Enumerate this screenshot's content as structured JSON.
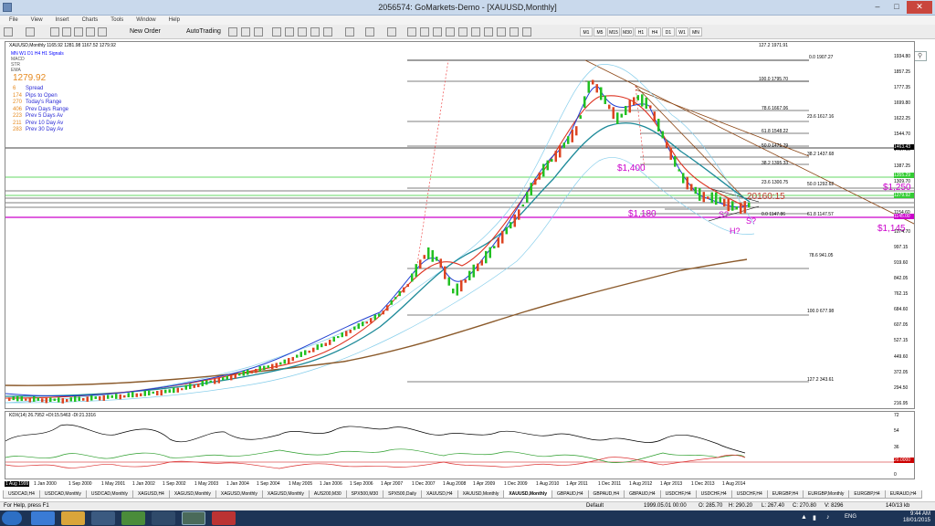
{
  "window": {
    "title": "2056574: GoMarkets-Demo - [XAUUSD,Monthly]",
    "min": "–",
    "max": "□",
    "close": "✕"
  },
  "menu": [
    "File",
    "View",
    "Insert",
    "Charts",
    "Tools",
    "Window",
    "Help"
  ],
  "toolbar": {
    "new_order": "New Order",
    "autotrading": "AutoTrading",
    "timeframes": [
      "M1",
      "M5",
      "M15",
      "M30",
      "H1",
      "H4",
      "D1",
      "W1",
      "MN"
    ]
  },
  "chart": {
    "header": "XAUUSD,Monthly 1165.92 1281.98 1167.52 1279.92",
    "signals_label": "MN W1 D1 H4 H1 Signals",
    "signals_rows": [
      "MACD",
      "STR",
      "EMA"
    ],
    "price": "1279.92",
    "stats": [
      {
        "n": "6",
        "l": "Spread"
      },
      {
        "n": "174",
        "l": "Pips to Open"
      },
      {
        "n": "270",
        "l": "Today's Range"
      },
      {
        "n": "406",
        "l": "Prev Days Range"
      },
      {
        "n": "223",
        "l": "Prev 5 Days Av"
      },
      {
        "n": "211",
        "l": "Prev 10 Day Av"
      },
      {
        "n": "283",
        "l": "Prev 30 Day Av"
      }
    ],
    "annotations": [
      "$1,400",
      "$1,180",
      "$1,250",
      "$1,145",
      "S?",
      "S?",
      "H?"
    ],
    "time_label": "20160:15",
    "fib_levels": [
      {
        "label": "127.2 1971.91"
      },
      {
        "label": "0.0 1907.27"
      },
      {
        "label": "100.0 1795.70"
      },
      {
        "label": "78.6 1667.06"
      },
      {
        "label": "23.6 1617.16"
      },
      {
        "label": "61.8 1548.22"
      },
      {
        "label": "50.0 1471.79"
      },
      {
        "label": "38.2 1437.68"
      },
      {
        "label": "38.2 1395.33"
      },
      {
        "label": "23.6 1300.75"
      },
      {
        "label": "50.0 1292.62"
      },
      {
        "label": "0.0 1147.86"
      },
      {
        "label": "61.8 1147.57"
      },
      {
        "label": "78.6 941.05"
      },
      {
        "label": "100.0 677.98"
      },
      {
        "label": "127.2 343.61"
      }
    ],
    "price_axis": [
      "1934.80",
      "1857.25",
      "1777.35",
      "1699.80",
      "1622.25",
      "1544.70",
      "1467.15",
      "1387.25",
      "1309.70",
      "1232.15",
      "1154.60",
      "1074.70",
      "997.15",
      "919.60",
      "842.05",
      "762.15",
      "684.60",
      "607.05",
      "527.15",
      "449.60",
      "372.05",
      "294.50",
      "216.95"
    ],
    "price_boxes": [
      "1463.43",
      "1355.29",
      "1279.92",
      "1145.00"
    ],
    "date_axis": [
      "1 Aug 1999",
      "1 Jan 2000",
      "1 Sep 2000",
      "1 May 2001",
      "1 Jan 2002",
      "1 Sep 2002",
      "1 May 2003",
      "1 Jan 2004",
      "1 Sep 2004",
      "1 May 2005",
      "1 Jan 2006",
      "1 Sep 2006",
      "1 Apr 2007",
      "1 Dec 2007",
      "1 Aug 2008",
      "1 Apr 2009",
      "1 Dec 2009",
      "1 Aug 2010",
      "1 Apr 2011",
      "1 Dec 2011",
      "1 Aug 2012",
      "1 Apr 2013",
      "1 Dec 2013",
      "1 Aug 2014"
    ]
  },
  "indicator": {
    "label": "KDX(14) 26.7952 +DI:15.5463 -DI:21.3316",
    "axis": [
      "72",
      "54",
      "36",
      "18",
      "0"
    ],
    "level": "20.0000"
  },
  "tabs": [
    "USDCAD,H4",
    "USDCAD,Monthly",
    "USDCAD,Monthly",
    "XAGUSD,H4",
    "XAGUSD,Monthly",
    "XAGUSD,Monthly",
    "XAGUSD,Monthly",
    "AUS200,M30",
    "SPX500,M30",
    "SPX500,Daily",
    "XAUUSD,H4",
    "XAUUSD,Monthly",
    "XAUUSD,Monthly",
    "GBPAUD,H4",
    "GBPAUD,H4",
    "GBPAUD,H4",
    "USDCHF,H4",
    "USDCHF,H4",
    "USDCHF,H4",
    "EURGBP,H4",
    "EURGBP,Monthly",
    "EURGBP,H4",
    "EURAUD,H4"
  ],
  "active_tab_index": 12,
  "status": {
    "help": "For Help, press F1",
    "profile": "Default",
    "date": "1999.05.01 00:00",
    "o": "O: 285.70",
    "h": "H: 290.20",
    "l": "L: 267.40",
    "c": "C: 270.80",
    "v": "V: 8296",
    "kb": "140/13 kb"
  },
  "taskbar": {
    "lang": "ENG",
    "time": "9:44 AM",
    "date": "18/01/2015"
  }
}
